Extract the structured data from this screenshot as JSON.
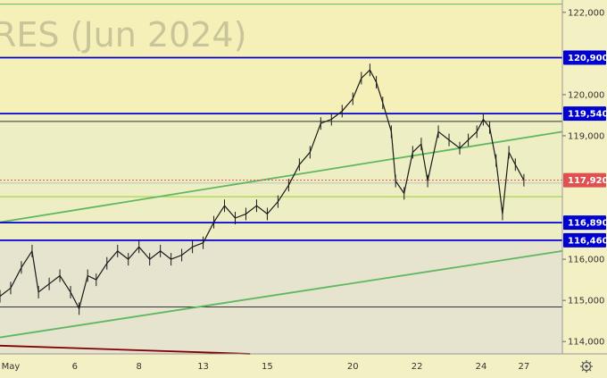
{
  "chart_data": {
    "type": "line",
    "title": "",
    "watermark": "RES (Jun 2024)",
    "xlabel": "",
    "ylabel": "",
    "ylim": [
      113700,
      122300
    ],
    "y_ticks": [
      {
        "value": 122000,
        "label": "122,000"
      },
      {
        "value": 120000,
        "label": "120,000"
      },
      {
        "value": 119000,
        "label": "119,000"
      },
      {
        "value": 116000,
        "label": "116,000"
      },
      {
        "value": 115000,
        "label": "115,000"
      },
      {
        "value": 114000,
        "label": "114,000"
      }
    ],
    "x_ticks": [
      {
        "index": 0,
        "label": "May"
      },
      {
        "index": 3,
        "label": "6"
      },
      {
        "index": 6,
        "label": "8"
      },
      {
        "index": 9,
        "label": "13"
      },
      {
        "index": 12,
        "label": "15"
      },
      {
        "index": 16,
        "label": "20"
      },
      {
        "index": 19,
        "label": "22"
      },
      {
        "index": 22,
        "label": "24"
      },
      {
        "index": 24,
        "label": "27"
      }
    ],
    "x_range": [
      -0.5,
      25.8
    ],
    "price_levels": [
      {
        "value": 120900,
        "label": "120,900",
        "color": "#0000d0"
      },
      {
        "value": 119540,
        "label": "119,540",
        "color": "#0000d0"
      },
      {
        "value": 116890,
        "label": "116,890",
        "color": "#0000d0"
      },
      {
        "value": 116460,
        "label": "116,460",
        "color": "#0000d0"
      }
    ],
    "last_price": {
      "value": 117920,
      "label": "117,920",
      "color": "#e05050"
    },
    "series": [
      {
        "values": [
          [
            -0.5,
            115100
          ],
          [
            0,
            115300
          ],
          [
            0.5,
            115800
          ],
          [
            1,
            116200
          ],
          [
            1.3,
            115200
          ],
          [
            1.8,
            115400
          ],
          [
            2.3,
            115600
          ],
          [
            2.8,
            115200
          ],
          [
            3.2,
            114800
          ],
          [
            3.6,
            115600
          ],
          [
            4,
            115500
          ],
          [
            4.5,
            115900
          ],
          [
            5,
            116200
          ],
          [
            5.5,
            116000
          ],
          [
            6,
            116300
          ],
          [
            6.5,
            116000
          ],
          [
            7,
            116200
          ],
          [
            7.5,
            116000
          ],
          [
            8,
            116100
          ],
          [
            8.5,
            116300
          ],
          [
            9,
            116400
          ],
          [
            9.5,
            116900
          ],
          [
            10,
            117300
          ],
          [
            10.5,
            117000
          ],
          [
            11,
            117100
          ],
          [
            11.5,
            117300
          ],
          [
            12,
            117100
          ],
          [
            12.5,
            117400
          ],
          [
            13,
            117800
          ],
          [
            13.5,
            118300
          ],
          [
            14,
            118600
          ],
          [
            14.5,
            119300
          ],
          [
            15,
            119400
          ],
          [
            15.5,
            119600
          ],
          [
            16,
            119900
          ],
          [
            16.4,
            120400
          ],
          [
            16.8,
            120600
          ],
          [
            17.1,
            120300
          ],
          [
            17.4,
            119800
          ],
          [
            17.8,
            119100
          ],
          [
            18,
            117900
          ],
          [
            18.4,
            117600
          ],
          [
            18.8,
            118600
          ],
          [
            19.2,
            118800
          ],
          [
            19.5,
            117900
          ],
          [
            20,
            119100
          ],
          [
            20.5,
            118900
          ],
          [
            21,
            118700
          ],
          [
            21.4,
            118900
          ],
          [
            21.8,
            119100
          ],
          [
            22.1,
            119400
          ],
          [
            22.4,
            119200
          ],
          [
            22.7,
            118400
          ],
          [
            23,
            117100
          ],
          [
            23.3,
            118600
          ],
          [
            23.6,
            118300
          ],
          [
            24,
            117920
          ]
        ]
      }
    ],
    "trend_lines": [
      {
        "color": "#5fb85f",
        "points": [
          [
            -0.5,
            116900
          ],
          [
            25.8,
            119100
          ]
        ]
      },
      {
        "color": "#5fb85f",
        "points": [
          [
            -0.5,
            114100
          ],
          [
            25.8,
            116200
          ]
        ]
      },
      {
        "color": "#800000",
        "points": [
          [
            -0.5,
            113900
          ],
          [
            11.2,
            113700
          ]
        ]
      }
    ],
    "horizontal_lines": [
      {
        "value": 122200,
        "color": "#5fb85f"
      },
      {
        "value": 119350,
        "color": "#333333"
      },
      {
        "value": 117850,
        "color": "#c0c0c0"
      },
      {
        "value": 117520,
        "color": "#9acd32"
      },
      {
        "value": 114840,
        "color": "#333333"
      }
    ],
    "shading": [
      {
        "from": 119540,
        "to": 122300,
        "color": "#f5f0b8"
      },
      {
        "from": 116460,
        "to": 119540,
        "color": "#eeeec4"
      },
      {
        "from": 113700,
        "to": 116460,
        "color": "#e6e3cf"
      }
    ],
    "grid": false,
    "legend": "none"
  },
  "ui": {
    "settings_icon": "gear-icon"
  }
}
